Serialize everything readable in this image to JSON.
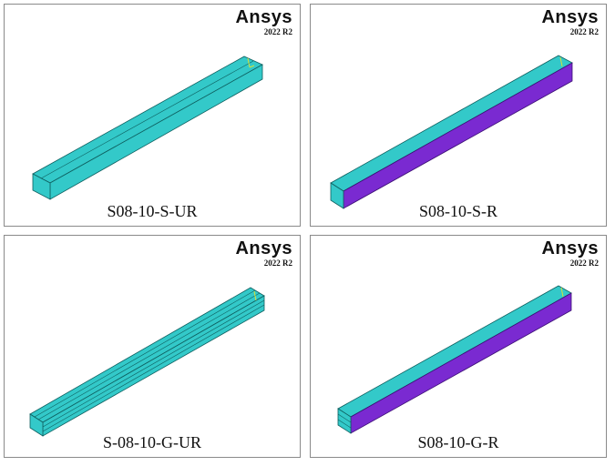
{
  "panels": [
    {
      "logo": "Ansys",
      "version": "2022 R2",
      "caption": "S08-10-S-UR",
      "colors": {
        "top": "#33c9c9",
        "side": "#33c9c9",
        "edge": "#0e5f5f"
      }
    },
    {
      "logo": "Ansys",
      "version": "2022 R2",
      "caption": "S08-10-S-R",
      "colors": {
        "top": "#33c9c9",
        "side": "#7a2ad1",
        "edge": "#0e5f5f"
      }
    },
    {
      "logo": "Ansys",
      "version": "2022 R2",
      "caption": "S-08-10-G-UR",
      "colors": {
        "top": "#33c9c9",
        "side": "#33c9c9",
        "edge": "#0e5f5f"
      }
    },
    {
      "logo": "Ansys",
      "version": "2022 R2",
      "caption": "S08-10-G-R",
      "colors": {
        "top": "#33c9c9",
        "side": "#7a2ad1",
        "edge": "#0e5f5f"
      }
    }
  ]
}
